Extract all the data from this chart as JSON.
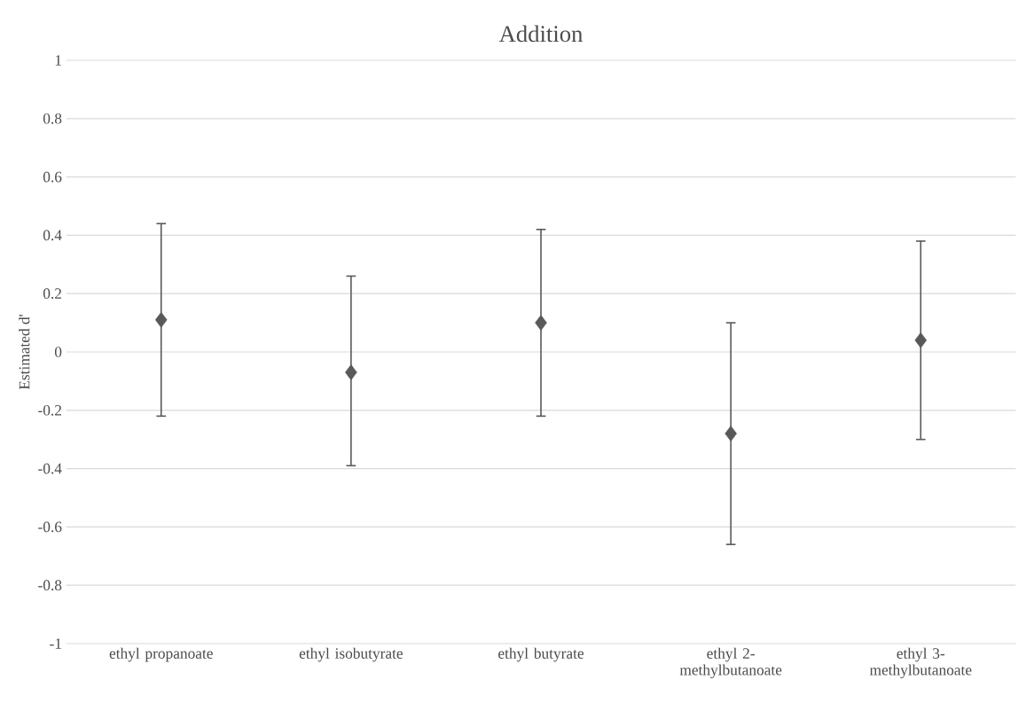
{
  "chart_data": {
    "type": "scatter",
    "title": "Addition",
    "ylabel": "Estimated d'",
    "categories": [
      "ethyl propanoate",
      "ethyl isobutyrate",
      "ethyl butyrate",
      "ethyl 2-methylbutanoate",
      "ethyl 3-methylbutanoate"
    ],
    "values": [
      0.11,
      -0.07,
      0.1,
      -0.28,
      0.04
    ],
    "errors": [
      [
        -0.22,
        0.44
      ],
      [
        -0.39,
        0.26
      ],
      [
        -0.22,
        0.42
      ],
      [
        -0.66,
        0.1
      ],
      [
        -0.3,
        0.38
      ]
    ],
    "color": "#595959",
    "marker": "diamond",
    "ylim": [
      -1,
      1
    ],
    "yticks": [
      -1,
      -0.8,
      -0.6,
      -0.4,
      -0.2,
      0,
      0.2,
      0.4,
      0.6,
      0.8,
      1
    ],
    "grid": "y"
  }
}
